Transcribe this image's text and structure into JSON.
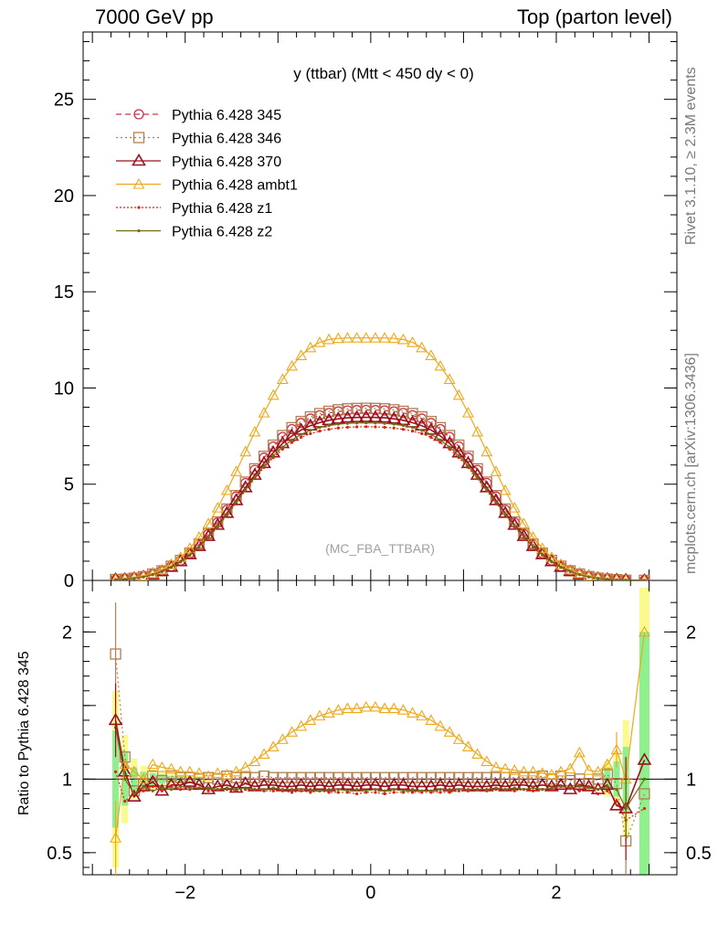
{
  "header": {
    "left": "7000 GeV pp",
    "right": "Top (parton level)"
  },
  "side_labels": {
    "rivet": "Rivet 3.1.10, ≥ 2.3M events",
    "mcplots": "mcplots.cern.ch [arXiv:1306.3436]"
  },
  "ratio_ylabel": "Ratio to Pythia 6.428 345",
  "colors": {
    "p345": "#d0304a",
    "p346": "#b08050",
    "p370": "#9c1020",
    "ambt1": "#f0a818",
    "z1": "#e02010",
    "z2": "#6e6e10",
    "band_green": "#90f090",
    "band_yellow": "#fafa90"
  },
  "chart_data": [
    {
      "type": "line",
      "panel": "main",
      "title": "y (ttbar) (Mtt < 450 dy < 0)",
      "watermark": "(MC_FBA_TTBAR)",
      "xlim": [
        -3.1,
        3.3
      ],
      "ylim": [
        0,
        28.5
      ],
      "yticks": [
        0,
        5,
        10,
        15,
        20,
        25
      ],
      "grid": false,
      "legend_position": "top-left",
      "x": [
        -2.75,
        -2.65,
        -2.55,
        -2.45,
        -2.35,
        -2.25,
        -2.15,
        -2.05,
        -1.95,
        -1.85,
        -1.75,
        -1.65,
        -1.55,
        -1.45,
        -1.35,
        -1.25,
        -1.15,
        -1.05,
        -0.95,
        -0.85,
        -0.75,
        -0.65,
        -0.55,
        -0.45,
        -0.35,
        -0.25,
        -0.15,
        -0.05,
        0.05,
        0.15,
        0.25,
        0.35,
        0.45,
        0.55,
        0.65,
        0.75,
        0.85,
        0.95,
        1.05,
        1.15,
        1.25,
        1.35,
        1.45,
        1.55,
        1.65,
        1.75,
        1.85,
        1.95,
        2.05,
        2.15,
        2.25,
        2.35,
        2.45,
        2.55,
        2.65,
        2.75,
        2.95
      ],
      "series": [
        {
          "name": "Pythia 6.428 345",
          "key": "p345",
          "marker": "circle",
          "dash": "6,4",
          "values": [
            0.04,
            0.07,
            0.12,
            0.2,
            0.32,
            0.5,
            0.73,
            1.03,
            1.41,
            1.87,
            2.41,
            3.01,
            3.67,
            4.36,
            5.06,
            5.74,
            6.38,
            6.96,
            7.45,
            7.86,
            8.18,
            8.41,
            8.58,
            8.7,
            8.78,
            8.83,
            8.85,
            8.86,
            8.85,
            8.83,
            8.78,
            8.7,
            8.58,
            8.41,
            8.18,
            7.86,
            7.45,
            6.96,
            6.38,
            5.74,
            5.06,
            4.36,
            3.67,
            3.01,
            2.41,
            1.87,
            1.41,
            1.03,
            0.73,
            0.5,
            0.32,
            0.2,
            0.12,
            0.07,
            0.04,
            0.02,
            0.005
          ]
        },
        {
          "name": "Pythia 6.428 346",
          "key": "p346",
          "marker": "square",
          "dash": "2,3",
          "values": [
            0.05,
            0.07,
            0.12,
            0.2,
            0.33,
            0.5,
            0.74,
            1.04,
            1.42,
            1.89,
            2.43,
            3.04,
            3.71,
            4.41,
            5.11,
            5.8,
            6.45,
            7.03,
            7.53,
            7.94,
            8.26,
            8.5,
            8.67,
            8.79,
            8.87,
            8.92,
            8.94,
            8.95,
            8.94,
            8.92,
            8.87,
            8.79,
            8.67,
            8.5,
            8.26,
            7.94,
            7.53,
            7.03,
            6.45,
            5.8,
            5.11,
            4.41,
            3.71,
            3.04,
            2.43,
            1.89,
            1.42,
            1.04,
            0.74,
            0.5,
            0.33,
            0.2,
            0.12,
            0.07,
            0.04,
            0.01,
            0.005
          ]
        },
        {
          "name": "Pythia 6.428 370",
          "key": "p370",
          "marker": "triangle",
          "dash": "",
          "values": [
            0.05,
            0.06,
            0.11,
            0.19,
            0.31,
            0.48,
            0.7,
            0.99,
            1.35,
            1.78,
            2.3,
            2.88,
            3.5,
            4.16,
            4.83,
            5.48,
            6.09,
            6.64,
            7.12,
            7.51,
            7.82,
            8.04,
            8.2,
            8.32,
            8.4,
            8.45,
            8.47,
            8.48,
            8.47,
            8.45,
            8.4,
            8.32,
            8.2,
            8.04,
            7.82,
            7.51,
            7.12,
            6.64,
            6.09,
            5.48,
            4.83,
            4.16,
            3.5,
            2.88,
            2.3,
            1.78,
            1.35,
            0.99,
            0.7,
            0.48,
            0.31,
            0.19,
            0.11,
            0.06,
            0.03,
            0.02,
            0.005
          ]
        },
        {
          "name": "Pythia 6.428 ambt1",
          "key": "ambt1",
          "marker": "triangle-open",
          "dash": "",
          "values": [
            0.05,
            0.08,
            0.14,
            0.23,
            0.36,
            0.56,
            0.84,
            1.2,
            1.67,
            2.25,
            2.95,
            3.77,
            4.68,
            5.66,
            6.69,
            7.72,
            8.71,
            9.63,
            10.45,
            11.14,
            11.69,
            12.1,
            12.37,
            12.52,
            12.58,
            12.6,
            12.6,
            12.6,
            12.6,
            12.6,
            12.58,
            12.52,
            12.37,
            12.1,
            11.69,
            11.14,
            10.45,
            9.63,
            8.71,
            7.72,
            6.69,
            5.66,
            4.68,
            3.77,
            2.95,
            2.25,
            1.67,
            1.2,
            0.84,
            0.56,
            0.36,
            0.23,
            0.14,
            0.08,
            0.04,
            0.02,
            0.005
          ]
        },
        {
          "name": "Pythia 6.428 z1",
          "key": "z1",
          "marker": "dot",
          "dash": "2,2",
          "values": [
            0.04,
            0.06,
            0.11,
            0.18,
            0.3,
            0.46,
            0.68,
            0.96,
            1.31,
            1.73,
            2.23,
            2.78,
            3.39,
            4.03,
            4.67,
            5.29,
            5.87,
            6.38,
            6.82,
            7.17,
            7.44,
            7.63,
            7.76,
            7.85,
            7.92,
            7.96,
            7.98,
            7.99,
            7.98,
            7.96,
            7.92,
            7.85,
            7.76,
            7.63,
            7.44,
            7.17,
            6.82,
            6.38,
            5.87,
            5.29,
            4.67,
            4.03,
            3.39,
            2.78,
            2.23,
            1.73,
            1.31,
            0.96,
            0.68,
            0.46,
            0.3,
            0.18,
            0.11,
            0.06,
            0.03,
            0.01,
            0.005
          ]
        },
        {
          "name": "Pythia 6.428 z2",
          "key": "z2",
          "marker": "dot",
          "dash": "",
          "values": [
            0.05,
            0.06,
            0.11,
            0.19,
            0.3,
            0.47,
            0.69,
            0.97,
            1.33,
            1.76,
            2.26,
            2.82,
            3.44,
            4.08,
            4.73,
            5.36,
            5.95,
            6.48,
            6.93,
            7.3,
            7.59,
            7.8,
            7.95,
            8.05,
            8.12,
            8.16,
            8.18,
            8.19,
            8.18,
            8.16,
            8.12,
            8.05,
            7.95,
            7.8,
            7.59,
            7.3,
            6.93,
            6.48,
            5.95,
            5.36,
            4.73,
            4.08,
            3.44,
            2.82,
            2.26,
            1.76,
            1.33,
            0.97,
            0.69,
            0.47,
            0.3,
            0.19,
            0.11,
            0.06,
            0.03,
            0.02,
            0.005
          ]
        }
      ]
    },
    {
      "type": "line",
      "panel": "ratio",
      "ylabel": "Ratio to Pythia 6.428 345",
      "xlim": [
        -3.1,
        3.3
      ],
      "ylim": [
        0.35,
        2.35
      ],
      "xticks": [
        -2,
        0,
        2
      ],
      "yticks": [
        0.5,
        1,
        2
      ],
      "reference_line": 1,
      "x": [
        -2.75,
        -2.65,
        -2.55,
        -2.45,
        -2.35,
        -2.25,
        -2.15,
        -2.05,
        -1.95,
        -1.85,
        -1.75,
        -1.65,
        -1.55,
        -1.45,
        -1.35,
        -1.25,
        -1.15,
        -1.05,
        -0.95,
        -0.85,
        -0.75,
        -0.65,
        -0.55,
        -0.45,
        -0.35,
        -0.25,
        -0.15,
        -0.05,
        0.05,
        0.15,
        0.25,
        0.35,
        0.45,
        0.55,
        0.65,
        0.75,
        0.85,
        0.95,
        1.05,
        1.15,
        1.25,
        1.35,
        1.45,
        1.55,
        1.65,
        1.75,
        1.85,
        1.95,
        2.05,
        2.15,
        2.25,
        2.35,
        2.45,
        2.55,
        2.65,
        2.75,
        2.95
      ],
      "band_x": [
        -2.75,
        -2.65,
        -2.55,
        -2.45,
        -2.35,
        -2.25,
        -2.15,
        -2.05,
        -1.95,
        -1.85,
        2.55,
        2.65,
        2.75,
        2.95
      ],
      "band_green_halfwidth": [
        0.33,
        0.18,
        0.08,
        0.05,
        0.04,
        0.03,
        0.02,
        0.02,
        0.01,
        0.01,
        0.08,
        0.12,
        0.22,
        1.0
      ],
      "band_yellow_halfwidth": [
        0.6,
        0.3,
        0.14,
        0.09,
        0.07,
        0.05,
        0.04,
        0.03,
        0.02,
        0.02,
        0.12,
        0.18,
        0.4,
        1.3
      ],
      "series": [
        {
          "name": "Pythia 6.428 345",
          "key": "p345",
          "marker": "circle",
          "dash": "6,4",
          "values": [
            1,
            1,
            1,
            1,
            1,
            1,
            1,
            1,
            1,
            1,
            1,
            1,
            1,
            1,
            1,
            1,
            1,
            1,
            1,
            1,
            1,
            1,
            1,
            1,
            1,
            1,
            1,
            1,
            1,
            1,
            1,
            1,
            1,
            1,
            1,
            1,
            1,
            1,
            1,
            1,
            1,
            1,
            1,
            1,
            1,
            1,
            1,
            1,
            1,
            1,
            1,
            1,
            1,
            1,
            1,
            1,
            1
          ]
        },
        {
          "name": "Pythia 6.428 346",
          "key": "p346",
          "marker": "square",
          "dash": "2,3",
          "values": [
            1.85,
            1.15,
            0.92,
            0.97,
            1.02,
            0.99,
            1.02,
            1.01,
            1.01,
            1.0,
            1.01,
            1.0,
            1.02,
            1.01,
            1.01,
            1.01,
            1.02,
            1.01,
            1.01,
            1.01,
            1.01,
            1.01,
            1.01,
            1.01,
            1.01,
            1.01,
            1.01,
            1.01,
            1.01,
            1.01,
            1.01,
            1.01,
            1.01,
            1.01,
            1.01,
            1.01,
            1.01,
            1.01,
            1.01,
            1.01,
            1.01,
            1.01,
            1.01,
            1.01,
            1.01,
            1.01,
            1.02,
            1.0,
            1.02,
            0.99,
            1.0,
            0.97,
            1.0,
            1.03,
            0.97,
            0.58,
            0.9
          ]
        },
        {
          "name": "Pythia 6.428 370",
          "key": "p370",
          "marker": "triangle",
          "dash": "",
          "values": [
            1.4,
            1.05,
            0.88,
            0.95,
            0.98,
            0.92,
            0.96,
            0.96,
            0.98,
            0.96,
            0.93,
            0.95,
            0.96,
            0.94,
            0.97,
            0.95,
            0.96,
            0.96,
            0.95,
            0.95,
            0.96,
            0.95,
            0.96,
            0.95,
            0.96,
            0.96,
            0.95,
            0.96,
            0.96,
            0.95,
            0.96,
            0.96,
            0.95,
            0.95,
            0.95,
            0.96,
            0.95,
            0.96,
            0.95,
            0.95,
            0.95,
            0.96,
            0.95,
            0.96,
            0.96,
            0.95,
            0.96,
            0.95,
            0.96,
            0.93,
            0.96,
            0.95,
            0.93,
            0.96,
            0.82,
            0.8,
            1.13
          ]
        },
        {
          "name": "Pythia 6.428 ambt1",
          "key": "ambt1",
          "marker": "triangle-open",
          "dash": "",
          "values": [
            0.6,
            1.1,
            1.05,
            1.0,
            1.1,
            1.08,
            1.07,
            1.05,
            1.05,
            1.04,
            1.02,
            1.04,
            1.03,
            1.05,
            1.08,
            1.12,
            1.17,
            1.22,
            1.27,
            1.32,
            1.36,
            1.4,
            1.43,
            1.45,
            1.47,
            1.48,
            1.48,
            1.49,
            1.49,
            1.48,
            1.48,
            1.47,
            1.45,
            1.43,
            1.4,
            1.36,
            1.32,
            1.27,
            1.22,
            1.17,
            1.12,
            1.08,
            1.07,
            1.06,
            1.05,
            1.05,
            1.04,
            1.03,
            1.05,
            1.07,
            1.18,
            1.06,
            1.05,
            1.1,
            1.2,
            1.0,
            2.0
          ]
        },
        {
          "name": "Pythia 6.428 z1",
          "key": "z1",
          "marker": "dot",
          "dash": "2,2",
          "values": [
            1.05,
            0.85,
            0.9,
            0.92,
            0.95,
            0.92,
            0.95,
            0.93,
            0.93,
            0.94,
            0.92,
            0.93,
            0.93,
            0.92,
            0.93,
            0.93,
            0.92,
            0.92,
            0.92,
            0.91,
            0.92,
            0.91,
            0.92,
            0.91,
            0.91,
            0.91,
            0.9,
            0.91,
            0.91,
            0.9,
            0.91,
            0.91,
            0.91,
            0.91,
            0.91,
            0.91,
            0.91,
            0.92,
            0.92,
            0.93,
            0.92,
            0.93,
            0.93,
            0.92,
            0.93,
            0.92,
            0.93,
            0.93,
            0.95,
            0.94,
            0.92,
            0.95,
            0.9,
            0.92,
            0.85,
            0.72,
            0.8
          ]
        },
        {
          "name": "Pythia 6.428 z2",
          "key": "z2",
          "marker": "dot",
          "dash": "",
          "values": [
            1.35,
            1.0,
            0.9,
            0.95,
            0.92,
            0.94,
            0.93,
            0.95,
            0.94,
            0.94,
            0.94,
            0.93,
            0.94,
            0.93,
            0.94,
            0.93,
            0.93,
            0.94,
            0.93,
            0.93,
            0.93,
            0.93,
            0.92,
            0.93,
            0.93,
            0.92,
            0.93,
            0.92,
            0.93,
            0.92,
            0.93,
            0.92,
            0.93,
            0.92,
            0.92,
            0.93,
            0.93,
            0.93,
            0.93,
            0.93,
            0.93,
            0.94,
            0.93,
            0.94,
            0.93,
            0.94,
            0.93,
            0.94,
            0.95,
            0.94,
            0.95,
            0.94,
            0.93,
            0.95,
            0.93,
            0.8,
            1.0
          ]
        }
      ]
    }
  ]
}
